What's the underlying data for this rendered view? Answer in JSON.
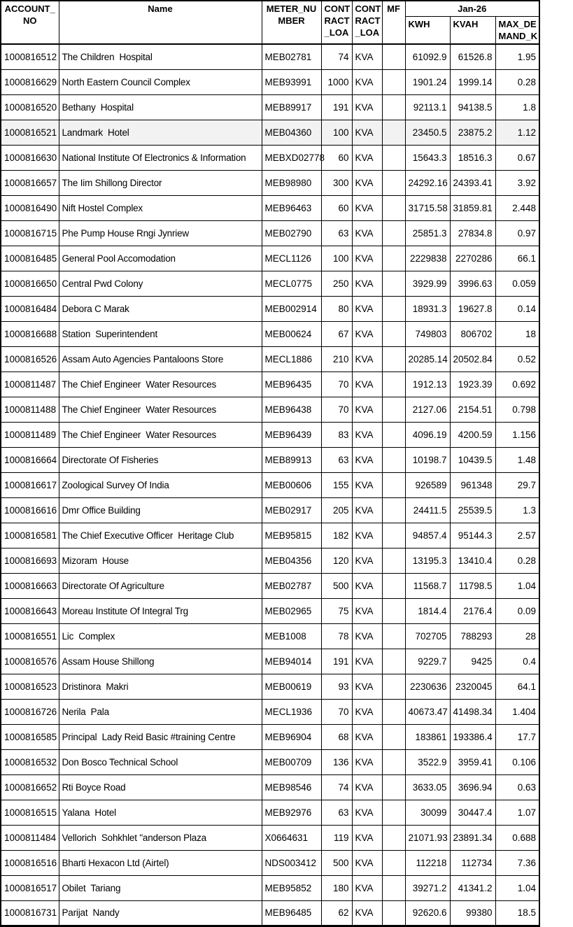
{
  "colors": {
    "border": "#000000",
    "text": "#000000",
    "background": "#ffffff",
    "highlight_row_bg": "#f2f2f2"
  },
  "header": {
    "account_no": [
      "ACCOUNT_",
      "NO"
    ],
    "name": "Name",
    "meter_number": [
      "METER_NU",
      "MBER"
    ],
    "contract_load_1": [
      "CONT",
      "RACT",
      "_LOA"
    ],
    "contract_load_2": [
      "CONT",
      "RACT",
      "_LOA"
    ],
    "mf": "MF",
    "period_group": "Jan-26",
    "kwh": "KWH",
    "kvah": [
      "KVAH"
    ],
    "max_demand": [
      "MAX_DE",
      "MAND_K"
    ]
  },
  "rows": [
    {
      "account": "1000816512",
      "name": "The Children  Hospital",
      "meter": "MEB02781",
      "load": "74",
      "unit": "KVA",
      "mf": "",
      "kwh": "61092.9",
      "kvah": "61526.8",
      "max_demand": "1.95",
      "highlighted": false
    },
    {
      "account": "1000816629",
      "name": "North Eastern Council Complex",
      "meter": "MEB93991",
      "load": "1000",
      "unit": "KVA",
      "mf": "",
      "kwh": "1901.24",
      "kvah": "1999.14",
      "max_demand": "0.28",
      "highlighted": false
    },
    {
      "account": "1000816520",
      "name": "Bethany  Hospital",
      "meter": "MEB89917",
      "load": "191",
      "unit": "KVA",
      "mf": "",
      "kwh": "92113.1",
      "kvah": "94138.5",
      "max_demand": "1.8",
      "highlighted": false
    },
    {
      "account": "1000816521",
      "name": "Landmark  Hotel",
      "meter": "MEB04360",
      "load": "100",
      "unit": "KVA",
      "mf": "",
      "kwh": "23450.5",
      "kvah": "23875.2",
      "max_demand": "1.12",
      "highlighted": true
    },
    {
      "account": "1000816630",
      "name": "National Institute Of Electronics & Information",
      "meter": "MEBXD02778",
      "load": "60",
      "unit": "KVA",
      "mf": "",
      "kwh": "15643.3",
      "kvah": "18516.3",
      "max_demand": "0.67",
      "highlighted": false
    },
    {
      "account": "1000816657",
      "name": "The Iim Shillong Director",
      "meter": "MEB98980",
      "load": "300",
      "unit": "KVA",
      "mf": "",
      "kwh": "24292.16",
      "kvah": "24393.41",
      "max_demand": "3.92",
      "highlighted": false
    },
    {
      "account": "1000816490",
      "name": "Nift Hostel Complex",
      "meter": "MEB96463",
      "load": "60",
      "unit": "KVA",
      "mf": "",
      "kwh": "31715.58",
      "kvah": "31859.81",
      "max_demand": "2.448",
      "highlighted": false
    },
    {
      "account": "1000816715",
      "name": "Phe Pump House Rngi Jynriew",
      "meter": "MEB02790",
      "load": "63",
      "unit": "KVA",
      "mf": "",
      "kwh": "25851.3",
      "kvah": "27834.8",
      "max_demand": "0.97",
      "highlighted": false
    },
    {
      "account": "1000816485",
      "name": "General Pool Accomodation",
      "meter": "MECL1126",
      "load": "100",
      "unit": "KVA",
      "mf": "",
      "kwh": "2229838",
      "kvah": "2270286",
      "max_demand": "66.1",
      "highlighted": false
    },
    {
      "account": "1000816650",
      "name": "Central Pwd Colony",
      "meter": "MECL0775",
      "load": "250",
      "unit": "KVA",
      "mf": "",
      "kwh": "3929.99",
      "kvah": "3996.63",
      "max_demand": "0.059",
      "highlighted": false
    },
    {
      "account": "1000816484",
      "name": "Debora C Marak",
      "meter": "MEB002914",
      "load": "80",
      "unit": "KVA",
      "mf": "",
      "kwh": "18931.3",
      "kvah": "19627.8",
      "max_demand": "0.14",
      "highlighted": false
    },
    {
      "account": "1000816688",
      "name": "Station  Superintendent",
      "meter": "MEB00624",
      "load": "67",
      "unit": "KVA",
      "mf": "",
      "kwh": "749803",
      "kvah": "806702",
      "max_demand": "18",
      "highlighted": false
    },
    {
      "account": "1000816526",
      "name": "Assam Auto Agencies Pantaloons Store",
      "meter": "MECL1886",
      "load": "210",
      "unit": "KVA",
      "mf": "",
      "kwh": "20285.14",
      "kvah": "20502.84",
      "max_demand": "0.52",
      "highlighted": false
    },
    {
      "account": "1000811487",
      "name": "The Chief Engineer  Water Resources",
      "meter": "MEB96435",
      "load": "70",
      "unit": "KVA",
      "mf": "",
      "kwh": "1912.13",
      "kvah": "1923.39",
      "max_demand": "0.692",
      "highlighted": false
    },
    {
      "account": "1000811488",
      "name": "The Chief Engineer  Water Resources",
      "meter": "MEB96438",
      "load": "70",
      "unit": "KVA",
      "mf": "",
      "kwh": "2127.06",
      "kvah": "2154.51",
      "max_demand": "0.798",
      "highlighted": false
    },
    {
      "account": "1000811489",
      "name": "The Chief Engineer  Water Resources",
      "meter": "MEB96439",
      "load": "83",
      "unit": "KVA",
      "mf": "",
      "kwh": "4096.19",
      "kvah": "4200.59",
      "max_demand": "1.156",
      "highlighted": false
    },
    {
      "account": "1000816664",
      "name": "Directorate Of Fisheries",
      "meter": "MEB89913",
      "load": "63",
      "unit": "KVA",
      "mf": "",
      "kwh": "10198.7",
      "kvah": "10439.5",
      "max_demand": "1.48",
      "highlighted": false
    },
    {
      "account": "1000816617",
      "name": "Zoological Survey Of India",
      "meter": "MEB00606",
      "load": "155",
      "unit": "KVA",
      "mf": "",
      "kwh": "926589",
      "kvah": "961348",
      "max_demand": "29.7",
      "highlighted": false
    },
    {
      "account": "1000816616",
      "name": "Dmr Office Building",
      "meter": "MEB02917",
      "load": "205",
      "unit": "KVA",
      "mf": "",
      "kwh": "24411.5",
      "kvah": "25539.5",
      "max_demand": "1.3",
      "highlighted": false
    },
    {
      "account": "1000816581",
      "name": "The Chief Executive Officer  Heritage Club",
      "meter": "MEB95815",
      "load": "182",
      "unit": "KVA",
      "mf": "",
      "kwh": "94857.4",
      "kvah": "95144.3",
      "max_demand": "2.57",
      "highlighted": false
    },
    {
      "account": "1000816693",
      "name": "Mizoram  House",
      "meter": "MEB04356",
      "load": "120",
      "unit": "KVA",
      "mf": "",
      "kwh": "13195.3",
      "kvah": "13410.4",
      "max_demand": "0.28",
      "highlighted": false
    },
    {
      "account": "1000816663",
      "name": "Directorate Of Agriculture",
      "meter": "MEB02787",
      "load": "500",
      "unit": "KVA",
      "mf": "",
      "kwh": "11568.7",
      "kvah": "11798.5",
      "max_demand": "1.04",
      "highlighted": false
    },
    {
      "account": "1000816643",
      "name": "Moreau Institute Of Integral Trg",
      "meter": "MEB02965",
      "load": "75",
      "unit": "KVA",
      "mf": "",
      "kwh": "1814.4",
      "kvah": "2176.4",
      "max_demand": "0.09",
      "highlighted": false
    },
    {
      "account": "1000816551",
      "name": "Lic  Complex",
      "meter": "MEB1008",
      "load": "78",
      "unit": "KVA",
      "mf": "",
      "kwh": "702705",
      "kvah": "788293",
      "max_demand": "28",
      "highlighted": false
    },
    {
      "account": "1000816576",
      "name": "Assam House Shillong",
      "meter": "MEB94014",
      "load": "191",
      "unit": "KVA",
      "mf": "",
      "kwh": "9229.7",
      "kvah": "9425",
      "max_demand": "0.4",
      "highlighted": false
    },
    {
      "account": "1000816523",
      "name": "Dristinora  Makri",
      "meter": "MEB00619",
      "load": "93",
      "unit": "KVA",
      "mf": "",
      "kwh": "2230636",
      "kvah": "2320045",
      "max_demand": "64.1",
      "highlighted": false
    },
    {
      "account": "1000816726",
      "name": "Nerila  Pala",
      "meter": "MECL1936",
      "load": "70",
      "unit": "KVA",
      "mf": "",
      "kwh": "40673.47",
      "kvah": "41498.34",
      "max_demand": "1.404",
      "highlighted": false
    },
    {
      "account": "1000816585",
      "name": "Principal  Lady Reid Basic #training Centre",
      "meter": "MEB96904",
      "load": "68",
      "unit": "KVA",
      "mf": "",
      "kwh": "183861",
      "kvah": "193386.4",
      "max_demand": "17.7",
      "highlighted": false
    },
    {
      "account": "1000816532",
      "name": "Don Bosco Technical School",
      "meter": "MEB00709",
      "load": "136",
      "unit": "KVA",
      "mf": "",
      "kwh": "3522.9",
      "kvah": "3959.41",
      "max_demand": "0.106",
      "highlighted": false
    },
    {
      "account": "1000816652",
      "name": "Rti Boyce Road",
      "meter": "MEB98546",
      "load": "74",
      "unit": "KVA",
      "mf": "",
      "kwh": "3633.05",
      "kvah": "3696.94",
      "max_demand": "0.63",
      "highlighted": false
    },
    {
      "account": "1000816515",
      "name": "Yalana  Hotel",
      "meter": "MEB92976",
      "load": "63",
      "unit": "KVA",
      "mf": "",
      "kwh": "30099",
      "kvah": "30447.4",
      "max_demand": "1.07",
      "highlighted": false
    },
    {
      "account": "1000811484",
      "name": "Vellorich  Sohkhlet \"anderson Plaza",
      "meter": "X0664631",
      "load": "119",
      "unit": "KVA",
      "mf": "",
      "kwh": "21071.93",
      "kvah": "23891.34",
      "max_demand": "0.688",
      "highlighted": false
    },
    {
      "account": "1000816516",
      "name": "Bharti Hexacon Ltd (Airtel)",
      "meter": "NDS003412",
      "load": "500",
      "unit": "KVA",
      "mf": "",
      "kwh": "112218",
      "kvah": "112734",
      "max_demand": "7.36",
      "highlighted": false
    },
    {
      "account": "1000816517",
      "name": "Obilet  Tariang",
      "meter": "MEB95852",
      "load": "180",
      "unit": "KVA",
      "mf": "",
      "kwh": "39271.2",
      "kvah": "41341.2",
      "max_demand": "1.04",
      "highlighted": false
    },
    {
      "account": "1000816731",
      "name": "Parijat  Nandy",
      "meter": "MEB96485",
      "load": "62",
      "unit": "KVA",
      "mf": "",
      "kwh": "92620.6",
      "kvah": "99380",
      "max_demand": "18.5",
      "highlighted": false
    }
  ]
}
